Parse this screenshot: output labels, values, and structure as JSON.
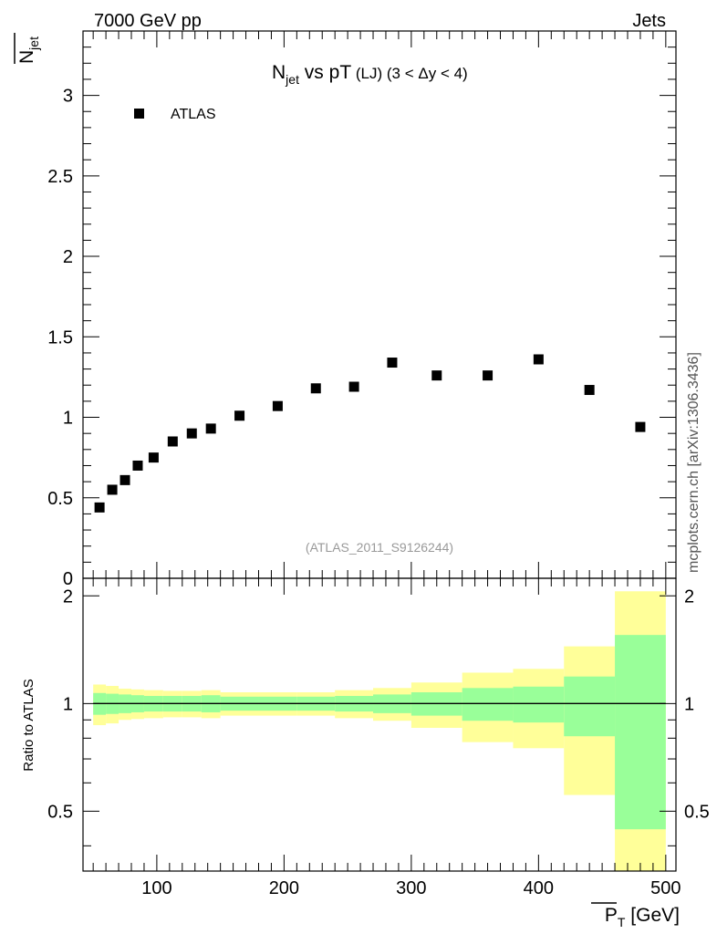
{
  "header": {
    "left": "7000 GeV pp",
    "right": "Jets"
  },
  "side_label": "mcplots.cern.ch [arXiv:1306.3436]",
  "chart_data": [
    {
      "type": "scatter",
      "title": {
        "main": "N",
        "main_sub": "jet",
        "rest": " vs pT",
        "tag": " (LJ)",
        "range": " (3 < Δy < 4)"
      },
      "ylabel": {
        "main": "N",
        "sub": "jet"
      },
      "watermark": "(ATLAS_2011_S9126244)",
      "xlim": [
        42,
        508
      ],
      "ylim": [
        0,
        3.4
      ],
      "yticks": [
        0,
        0.5,
        1,
        1.5,
        2,
        2.5,
        3
      ],
      "ytick_labels": [
        "0",
        "0.5",
        "1",
        "1.5",
        "2",
        "2.5",
        "3"
      ],
      "legend": {
        "position": "top-left",
        "entries": [
          {
            "label": "ATLAS",
            "marker": "square"
          }
        ]
      },
      "series": [
        {
          "name": "ATLAS",
          "x": [
            55,
            65,
            75,
            85,
            97.5,
            112.5,
            127.5,
            142.5,
            165,
            195,
            225,
            255,
            285,
            320,
            360,
            400,
            440,
            480
          ],
          "y": [
            0.44,
            0.55,
            0.61,
            0.7,
            0.75,
            0.85,
            0.9,
            0.93,
            1.01,
            1.07,
            1.18,
            1.19,
            1.34,
            1.26,
            1.26,
            1.36,
            1.17,
            0.94
          ]
        }
      ]
    },
    {
      "type": "area",
      "ylabel": "Ratio to ATLAS",
      "xlabel": {
        "main": "P",
        "sub": "T",
        "unit": " [GeV]"
      },
      "xlim": [
        42,
        508
      ],
      "ylim": [
        0.34,
        2.24
      ],
      "xticks": [
        100,
        200,
        300,
        400,
        500
      ],
      "xtick_labels": [
        "100",
        "200",
        "300",
        "400",
        "500"
      ],
      "yticks": [
        0.5,
        1,
        2
      ],
      "ytick_labels": [
        "0.5",
        "1",
        "2"
      ],
      "reference_line": 1,
      "bins": [
        {
          "lo": 50,
          "hi": 60,
          "inner": [
            0.93,
            1.07
          ],
          "outer": [
            0.87,
            1.13
          ]
        },
        {
          "lo": 60,
          "hi": 70,
          "inner": [
            0.935,
            1.065
          ],
          "outer": [
            0.88,
            1.12
          ]
        },
        {
          "lo": 70,
          "hi": 80,
          "inner": [
            0.94,
            1.06
          ],
          "outer": [
            0.9,
            1.1
          ]
        },
        {
          "lo": 80,
          "hi": 90,
          "inner": [
            0.945,
            1.055
          ],
          "outer": [
            0.905,
            1.095
          ]
        },
        {
          "lo": 90,
          "hi": 105,
          "inner": [
            0.95,
            1.05
          ],
          "outer": [
            0.91,
            1.09
          ]
        },
        {
          "lo": 105,
          "hi": 120,
          "inner": [
            0.95,
            1.05
          ],
          "outer": [
            0.915,
            1.085
          ]
        },
        {
          "lo": 120,
          "hi": 135,
          "inner": [
            0.95,
            1.05
          ],
          "outer": [
            0.915,
            1.085
          ]
        },
        {
          "lo": 135,
          "hi": 150,
          "inner": [
            0.945,
            1.055
          ],
          "outer": [
            0.91,
            1.09
          ]
        },
        {
          "lo": 150,
          "hi": 180,
          "inner": [
            0.955,
            1.045
          ],
          "outer": [
            0.925,
            1.075
          ]
        },
        {
          "lo": 180,
          "hi": 210,
          "inner": [
            0.955,
            1.045
          ],
          "outer": [
            0.925,
            1.075
          ]
        },
        {
          "lo": 210,
          "hi": 240,
          "inner": [
            0.955,
            1.045
          ],
          "outer": [
            0.925,
            1.075
          ]
        },
        {
          "lo": 240,
          "hi": 270,
          "inner": [
            0.95,
            1.05
          ],
          "outer": [
            0.91,
            1.09
          ]
        },
        {
          "lo": 270,
          "hi": 300,
          "inner": [
            0.94,
            1.06
          ],
          "outer": [
            0.895,
            1.105
          ]
        },
        {
          "lo": 300,
          "hi": 340,
          "inner": [
            0.925,
            1.075
          ],
          "outer": [
            0.855,
            1.145
          ]
        },
        {
          "lo": 340,
          "hi": 380,
          "inner": [
            0.895,
            1.105
          ],
          "outer": [
            0.78,
            1.22
          ]
        },
        {
          "lo": 380,
          "hi": 420,
          "inner": [
            0.885,
            1.115
          ],
          "outer": [
            0.75,
            1.25
          ]
        },
        {
          "lo": 420,
          "hi": 460,
          "inner": [
            0.81,
            1.19
          ],
          "outer": [
            0.555,
            1.445
          ]
        },
        {
          "lo": 460,
          "hi": 500,
          "inner": [
            0.445,
            1.555
          ],
          "outer": [
            0.34,
            2.06
          ]
        }
      ],
      "colors": {
        "inner": "#99ff99",
        "outer": "#ffff99"
      }
    }
  ]
}
